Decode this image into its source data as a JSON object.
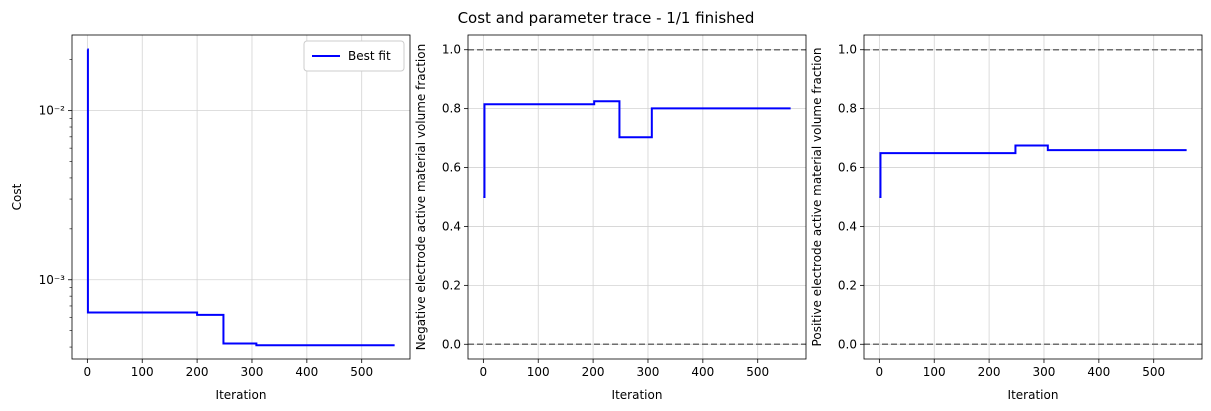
{
  "figure": {
    "suptitle": "Cost and parameter trace - 1/1 finished"
  },
  "colors": {
    "line": "#0000ff",
    "bound": "#6e6e6e",
    "grid": "#d3d3d3"
  },
  "chart_data": [
    {
      "type": "line",
      "title": "",
      "xlabel": "Iteration",
      "ylabel": "Cost",
      "yscale": "log",
      "xlim": [
        -28,
        588
      ],
      "ylim": [
        0.00034,
        0.028
      ],
      "xticks": [
        0,
        100,
        200,
        300,
        400,
        500
      ],
      "yticks_major": [
        0.001,
        0.01
      ],
      "ytick_labels": [
        "10⁻³",
        "10⁻²"
      ],
      "yticks_minor": [
        0.0004,
        0.0005,
        0.0006,
        0.0007,
        0.0008,
        0.0009,
        0.002,
        0.003,
        0.004,
        0.005,
        0.006,
        0.007,
        0.008,
        0.009,
        0.02
      ],
      "grid": true,
      "legend": {
        "position": "upper-right",
        "entries": [
          "Best fit"
        ]
      },
      "series": [
        {
          "name": "Best fit",
          "drawstyle": "steps-post",
          "x": [
            0,
            1,
            200,
            248,
            308,
            560
          ],
          "y": [
            0.023,
            0.00064,
            0.00062,
            0.00042,
            0.00041,
            0.00041
          ]
        }
      ],
      "hlines": []
    },
    {
      "type": "line",
      "title": "",
      "xlabel": "Iteration",
      "ylabel": "Negative electrode active material volume fraction",
      "yscale": "linear",
      "xlim": [
        -28,
        588
      ],
      "ylim": [
        -0.05,
        1.05
      ],
      "xticks": [
        0,
        100,
        200,
        300,
        400,
        500
      ],
      "yticks": [
        0.0,
        0.2,
        0.4,
        0.6,
        0.8,
        1.0
      ],
      "ytick_labels": [
        "0.0",
        "0.2",
        "0.4",
        "0.6",
        "0.8",
        "1.0"
      ],
      "grid": true,
      "series": [
        {
          "drawstyle": "steps-post",
          "x": [
            0,
            2,
            202,
            248,
            307,
            560
          ],
          "y": [
            0.5,
            0.815,
            0.825,
            0.703,
            0.801,
            0.801
          ]
        }
      ],
      "hlines": [
        0.0,
        1.0
      ]
    },
    {
      "type": "line",
      "title": "",
      "xlabel": "Iteration",
      "ylabel": "Positive electrode active material volume fraction",
      "yscale": "linear",
      "xlim": [
        -28,
        588
      ],
      "ylim": [
        -0.05,
        1.05
      ],
      "xticks": [
        0,
        100,
        200,
        300,
        400,
        500
      ],
      "yticks": [
        0.0,
        0.2,
        0.4,
        0.6,
        0.8,
        1.0
      ],
      "ytick_labels": [
        "0.0",
        "0.2",
        "0.4",
        "0.6",
        "0.8",
        "1.0"
      ],
      "grid": true,
      "series": [
        {
          "drawstyle": "steps-post",
          "x": [
            0,
            2,
            248,
            307,
            560
          ],
          "y": [
            0.5,
            0.649,
            0.675,
            0.659,
            0.659
          ]
        }
      ],
      "hlines": [
        0.0,
        1.0
      ]
    }
  ]
}
